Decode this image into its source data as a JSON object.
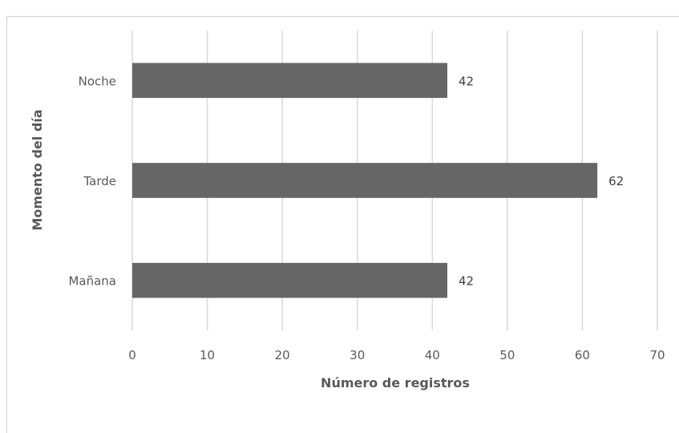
{
  "chart_data": {
    "type": "bar",
    "orientation": "horizontal",
    "categories": [
      "Mañana",
      "Tarde",
      "Noche"
    ],
    "values": [
      42,
      62,
      42
    ],
    "xlabel": "Número de registros",
    "ylabel": "Momento del día",
    "xlim": [
      0,
      70
    ],
    "xticks": [
      "0",
      "10",
      "20",
      "30",
      "40",
      "50",
      "60",
      "70"
    ],
    "grid": true,
    "legend": "none",
    "bar_color": "#666666",
    "grid_color": "#d9d9d9"
  }
}
